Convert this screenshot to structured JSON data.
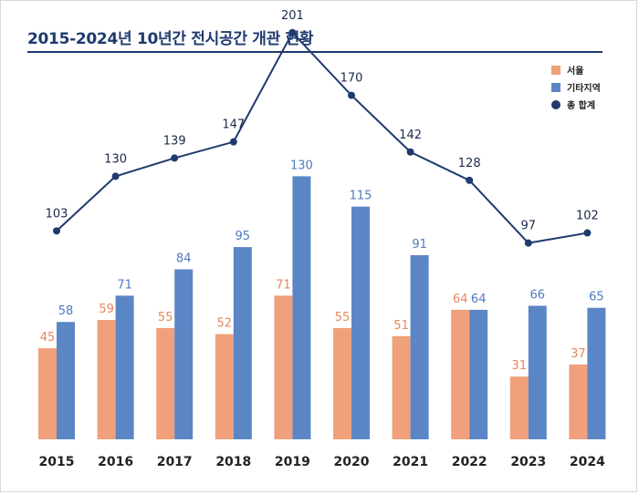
{
  "title": "2015-2024년 10년간 전시공간 개관 현황",
  "colors": {
    "seoul": "#f0a07a",
    "other": "#5b86c6",
    "total": "#1f3a6e",
    "seoul_label": "#e8875c",
    "other_label": "#4d7bc0",
    "total_label": "#1a2a4a"
  },
  "chart_data": {
    "type": "bar",
    "title": "2015-2024년 10년간 전시공간 개관 현황",
    "xlabel": "",
    "ylabel": "",
    "ylim": [
      0,
      230
    ],
    "grid": false,
    "legend_position": "top-right",
    "categories": [
      "2015",
      "2016",
      "2017",
      "2018",
      "2019",
      "2020",
      "2021",
      "2022",
      "2023",
      "2024"
    ],
    "series": [
      {
        "name": "서울",
        "type": "bar",
        "values": [
          45,
          59,
          55,
          52,
          71,
          55,
          51,
          64,
          31,
          37
        ]
      },
      {
        "name": "기타지역",
        "type": "bar",
        "values": [
          58,
          71,
          84,
          95,
          130,
          115,
          91,
          64,
          66,
          65
        ]
      },
      {
        "name": "총 합계",
        "type": "line",
        "values": [
          103,
          130,
          139,
          147,
          201,
          170,
          142,
          128,
          97,
          102
        ]
      }
    ]
  }
}
